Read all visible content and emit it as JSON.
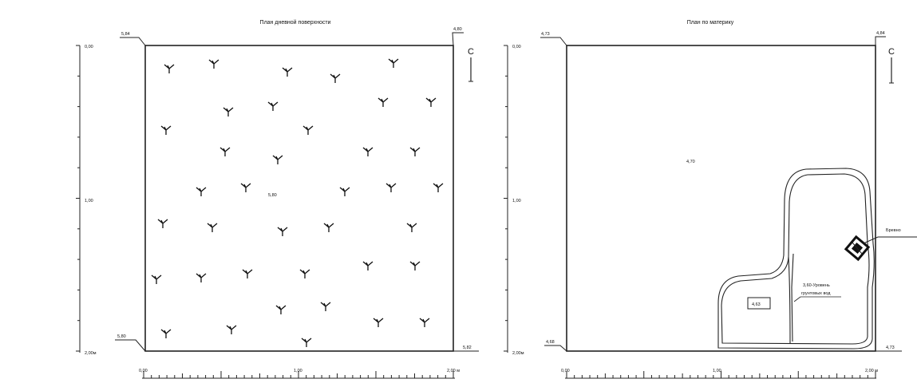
{
  "left_plan": {
    "title": "План дневной поверхности",
    "corner_labels": {
      "top_left": "5,84",
      "top_right": "4,80",
      "bottom_left": "5,80",
      "bottom_right": "5,82"
    },
    "center_mark": "5,80",
    "y_ticks": [
      "0,00",
      "1,00",
      "2,00м"
    ],
    "x_ticks": [
      "0,00",
      "1,00",
      "2,00 м"
    ],
    "north_label": "С",
    "vegetation_symbol": "grass-tuft-icon"
  },
  "right_plan": {
    "title": "План по материку",
    "corner_labels": {
      "top_left": "4,73",
      "top_right": "4,84",
      "bottom_left": "4,68",
      "bottom_right": "4,73"
    },
    "surface_mark": "4,70",
    "pit_mark": "4,63",
    "annotation_line1": "3,60-Уровень",
    "annotation_line2": "грунтовых вод",
    "log_label": "Бревно",
    "y_ticks": [
      "0,00",
      "1,00",
      "2,00м"
    ],
    "x_ticks": [
      "0,00",
      "1,00",
      "2,00 м"
    ],
    "north_label": "С"
  }
}
